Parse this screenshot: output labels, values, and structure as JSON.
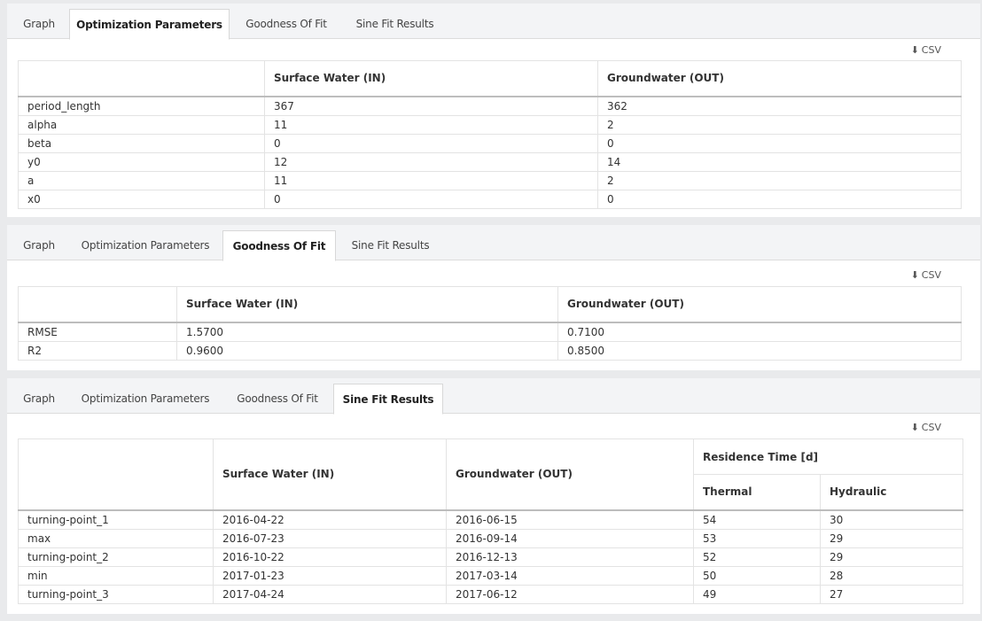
{
  "tabs": [
    "Graph",
    "Optimization Parameters",
    "Goodness Of Fit",
    "Sine Fit Results"
  ],
  "csv_label": "CSV",
  "download_icon": "download-icon",
  "optimization": {
    "active_tab": "Optimization Parameters",
    "columns": [
      "",
      "Surface Water (IN)",
      "Groundwater (OUT)"
    ],
    "rows": [
      {
        "name": "period_length",
        "in": "367",
        "out": "362"
      },
      {
        "name": "alpha",
        "in": "11",
        "out": "2"
      },
      {
        "name": "beta",
        "in": "0",
        "out": "0"
      },
      {
        "name": "y0",
        "in": "12",
        "out": "14"
      },
      {
        "name": "a",
        "in": "11",
        "out": "2"
      },
      {
        "name": "x0",
        "in": "0",
        "out": "0"
      }
    ]
  },
  "goodness": {
    "active_tab": "Goodness Of Fit",
    "columns": [
      "",
      "Surface Water (IN)",
      "Groundwater (OUT)"
    ],
    "rows": [
      {
        "name": "RMSE",
        "in": "1.5700",
        "out": "0.7100"
      },
      {
        "name": "R2",
        "in": "0.9600",
        "out": "0.8500"
      }
    ]
  },
  "sine": {
    "active_tab": "Sine Fit Results",
    "columns": [
      "",
      "Surface Water (IN)",
      "Groundwater (OUT)"
    ],
    "group_header": "Residence Time [d]",
    "sub_columns": [
      "Thermal",
      "Hydraulic"
    ],
    "rows": [
      {
        "name": "turning-point_1",
        "in": "2016-04-22",
        "out": "2016-06-15",
        "thermal": "54",
        "hydraulic": "30"
      },
      {
        "name": "max",
        "in": "2016-07-23",
        "out": "2016-09-14",
        "thermal": "53",
        "hydraulic": "29"
      },
      {
        "name": "turning-point_2",
        "in": "2016-10-22",
        "out": "2016-12-13",
        "thermal": "52",
        "hydraulic": "29"
      },
      {
        "name": "min",
        "in": "2017-01-23",
        "out": "2017-03-14",
        "thermal": "50",
        "hydraulic": "28"
      },
      {
        "name": "turning-point_3",
        "in": "2017-04-24",
        "out": "2017-06-12",
        "thermal": "49",
        "hydraulic": "27"
      }
    ]
  }
}
